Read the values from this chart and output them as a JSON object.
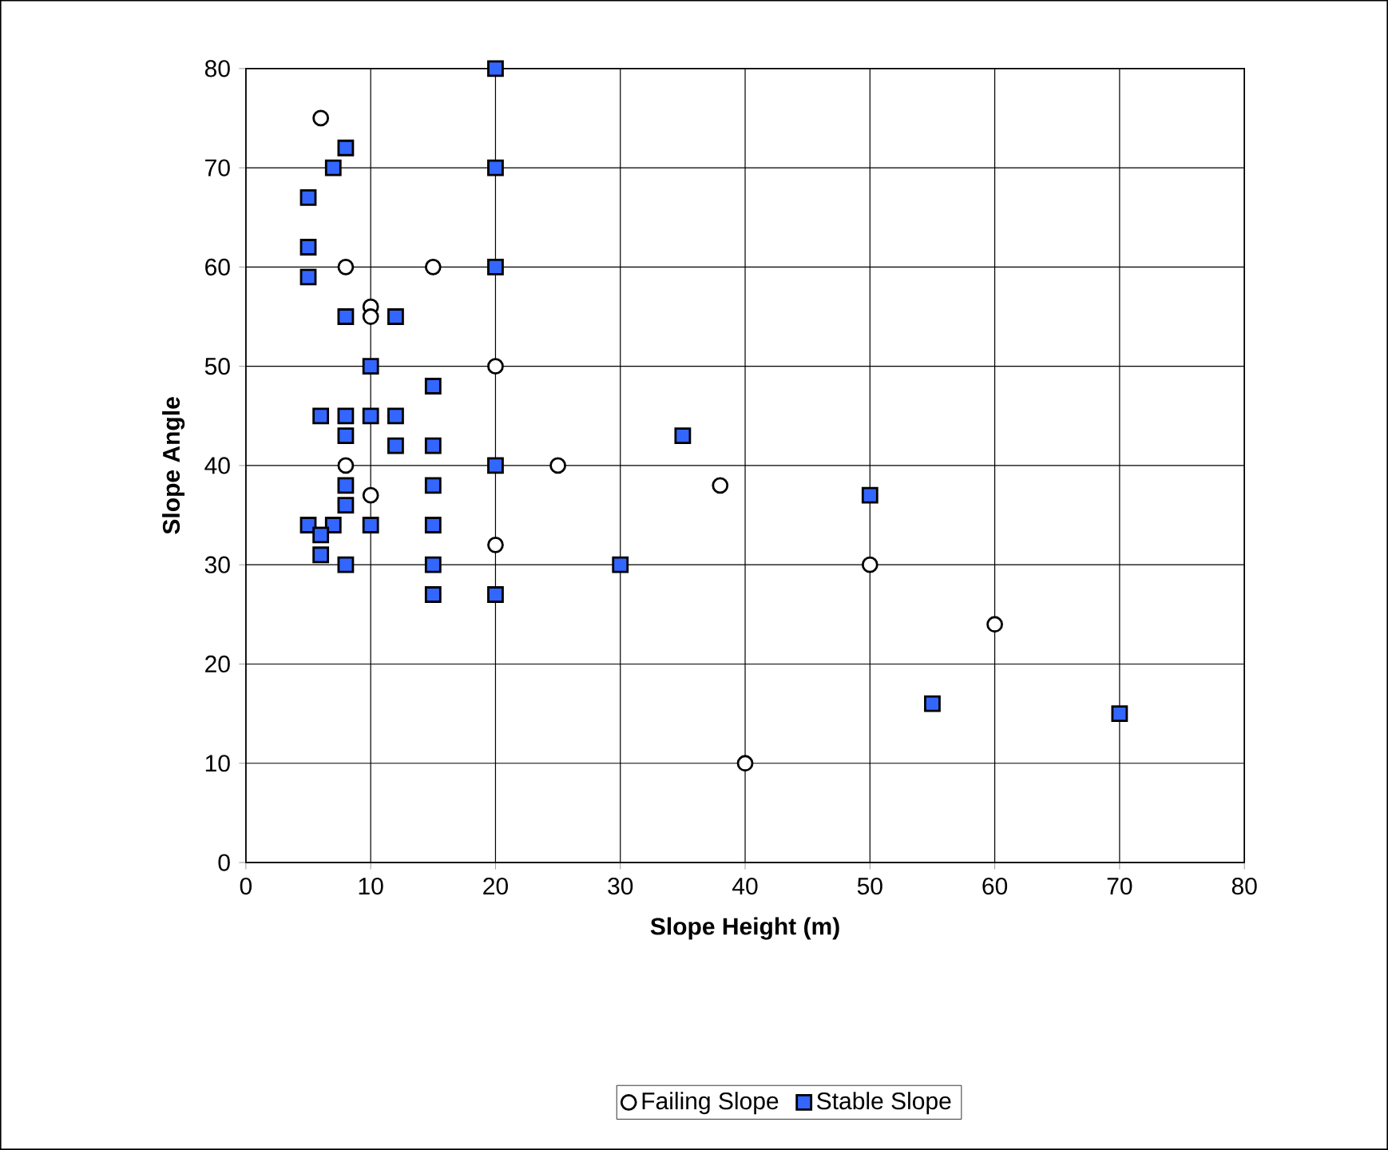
{
  "chart_data": {
    "type": "scatter",
    "xlabel": "Slope Height (m)",
    "ylabel": "Slope Angle",
    "xlim": [
      0,
      80
    ],
    "ylim": [
      0,
      80
    ],
    "xticks": [
      0,
      10,
      20,
      30,
      40,
      50,
      60,
      70,
      80
    ],
    "yticks": [
      0,
      10,
      20,
      30,
      40,
      50,
      60,
      70,
      80
    ],
    "grid": true,
    "legend": "bottom",
    "series": [
      {
        "name": "Failing Slope",
        "color": "#ffffff",
        "marker": "circle",
        "x": [
          6,
          8,
          15,
          10,
          10,
          20,
          8,
          10,
          20,
          25,
          38,
          50,
          60,
          40
        ],
        "values": [
          75,
          60,
          60,
          56,
          55,
          50,
          40,
          37,
          32,
          40,
          38,
          30,
          24,
          10
        ]
      },
      {
        "name": "Stable Slope",
        "color": "#3366ff",
        "marker": "square",
        "x": [
          20,
          8,
          7,
          20,
          5,
          5,
          20,
          5,
          8,
          12,
          10,
          15,
          6,
          8,
          10,
          12,
          8,
          12,
          15,
          20,
          35,
          8,
          15,
          8,
          50,
          5,
          7,
          10,
          15,
          6,
          6,
          8,
          15,
          30,
          15,
          20,
          55,
          70
        ],
        "values": [
          80,
          72,
          70,
          70,
          67,
          62,
          60,
          59,
          55,
          55,
          50,
          48,
          45,
          45,
          45,
          45,
          43,
          42,
          42,
          40,
          43,
          38,
          38,
          36,
          37,
          34,
          34,
          34,
          34,
          33,
          31,
          30,
          30,
          30,
          27,
          27,
          16,
          15
        ]
      }
    ]
  }
}
